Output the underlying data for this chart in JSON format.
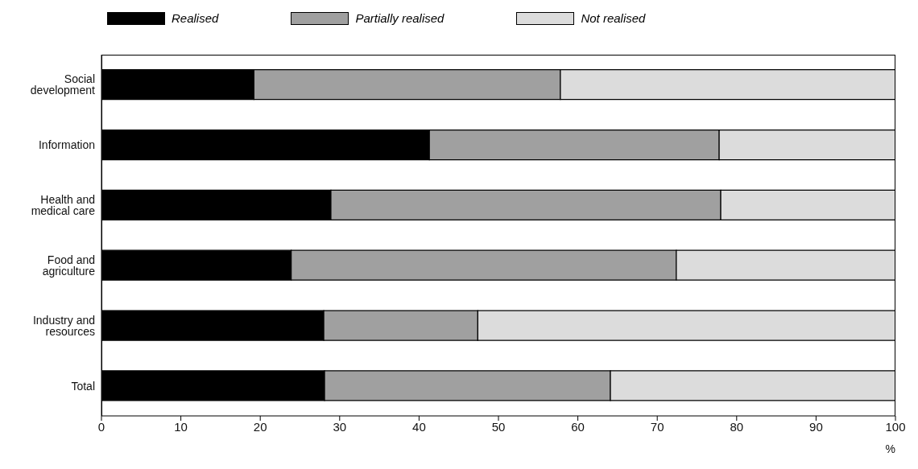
{
  "chart_data": {
    "type": "bar",
    "orientation": "horizontal",
    "stacked": true,
    "categories": [
      "Social development",
      "Information",
      "Health and medical care",
      "Food and agriculture",
      "Industry and resources",
      "Total"
    ],
    "series": [
      {
        "name": "Realised",
        "color": "#000000",
        "values": [
          19.2,
          41.3,
          28.9,
          23.9,
          28.0,
          28.1
        ]
      },
      {
        "name": "Partially realised",
        "color": "#a0a0a0",
        "values": [
          38.6,
          36.5,
          49.1,
          48.5,
          19.4,
          36.0
        ]
      },
      {
        "name": "Not realised",
        "color": "#dcdcdc",
        "values": [
          42.2,
          22.2,
          22.0,
          27.6,
          52.6,
          35.9
        ]
      }
    ],
    "xlabel": "%",
    "xlim": [
      0,
      100
    ],
    "xticks": [
      0,
      10,
      20,
      30,
      40,
      50,
      60,
      70,
      80,
      90,
      100
    ],
    "legend": "top left"
  }
}
